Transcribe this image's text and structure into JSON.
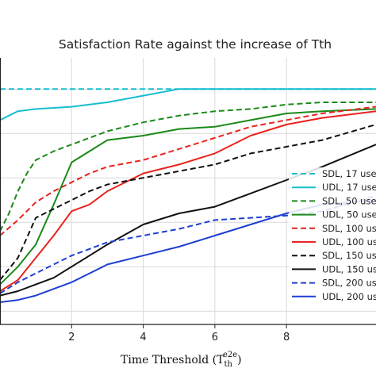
{
  "chart_data": {
    "type": "line",
    "title": "Satisfaction Rate against the increase of Tth",
    "xlabel": "Time Threshold (T",
    "xlabel_sup": "e2e",
    "xlabel_sub": "th",
    "xlabel_close": ")",
    "xlim": [
      0,
      10.5
    ],
    "ylim": [
      0.47,
      1.07
    ],
    "xticks": [
      2,
      4,
      6,
      8
    ],
    "grid": true,
    "legend_position": "right-lower",
    "series": [
      {
        "name": "SDL, 17 use",
        "color": "#17becf",
        "dash": "dashed",
        "x": [
          0,
          0.2,
          0.5,
          1,
          2,
          3,
          4,
          5,
          6,
          7,
          8,
          9,
          10.5
        ],
        "y": [
          1.0,
          1.0,
          1.0,
          1.0,
          1.0,
          1.0,
          1.0,
          1.0,
          1.0,
          1.0,
          1.0,
          1.0,
          1.0
        ]
      },
      {
        "name": "UDL, 17 use",
        "color": "#17becf",
        "dash": "solid",
        "x": [
          0,
          0.5,
          1,
          2,
          3,
          4,
          5,
          6,
          7,
          8,
          9,
          10.5
        ],
        "y": [
          0.93,
          0.95,
          0.955,
          0.96,
          0.97,
          0.985,
          1.0,
          1.0,
          1.0,
          1.0,
          1.0,
          1.0
        ]
      },
      {
        "name": "SDL, 50 use",
        "color": "#1a8a1a",
        "dash": "dashed",
        "x": [
          0,
          0.25,
          0.5,
          0.75,
          1,
          1.5,
          2,
          2.5,
          3,
          4,
          5,
          6,
          7,
          8,
          9,
          10.5
        ],
        "y": [
          0.68,
          0.72,
          0.77,
          0.81,
          0.84,
          0.86,
          0.875,
          0.89,
          0.905,
          0.925,
          0.94,
          0.95,
          0.955,
          0.965,
          0.97,
          0.97
        ]
      },
      {
        "name": "UDL, 50 use",
        "color": "#1a8a1a",
        "dash": "solid",
        "x": [
          0,
          0.5,
          1,
          1.5,
          2,
          2.5,
          3,
          4,
          5,
          6,
          7,
          8,
          9,
          10.5
        ],
        "y": [
          0.56,
          0.6,
          0.65,
          0.74,
          0.835,
          0.86,
          0.885,
          0.895,
          0.91,
          0.915,
          0.93,
          0.945,
          0.95,
          0.955
        ]
      },
      {
        "name": "SDL, 100 use",
        "color": "#e8231e",
        "dash": "dashed",
        "x": [
          0,
          0.5,
          1,
          1.5,
          2,
          2.5,
          3,
          4,
          5,
          6,
          7,
          8,
          9,
          10.5
        ],
        "y": [
          0.67,
          0.705,
          0.745,
          0.77,
          0.79,
          0.81,
          0.825,
          0.84,
          0.865,
          0.89,
          0.915,
          0.93,
          0.945,
          0.96
        ]
      },
      {
        "name": "UDL, 100 use",
        "color": "#e8231e",
        "dash": "solid",
        "x": [
          0,
          0.5,
          1,
          1.5,
          2,
          2.5,
          3,
          4,
          5,
          6,
          7,
          8,
          9,
          10.5
        ],
        "y": [
          0.545,
          0.57,
          0.62,
          0.67,
          0.725,
          0.74,
          0.77,
          0.81,
          0.83,
          0.855,
          0.895,
          0.92,
          0.935,
          0.95
        ]
      },
      {
        "name": "SDL, 150 use",
        "color": "#111111",
        "dash": "dashed",
        "x": [
          0,
          0.5,
          1,
          1.5,
          2,
          2.5,
          3,
          4,
          5,
          6,
          7,
          8,
          9,
          10.5
        ],
        "y": [
          0.57,
          0.62,
          0.71,
          0.73,
          0.75,
          0.77,
          0.785,
          0.8,
          0.815,
          0.83,
          0.855,
          0.87,
          0.885,
          0.92
        ]
      },
      {
        "name": "UDL, 150 use",
        "color": "#111111",
        "dash": "solid",
        "x": [
          0,
          0.5,
          1,
          1.5,
          2,
          2.5,
          3,
          4,
          5,
          6,
          7,
          8,
          9,
          10.5
        ],
        "y": [
          0.535,
          0.545,
          0.56,
          0.575,
          0.6,
          0.625,
          0.65,
          0.695,
          0.72,
          0.735,
          0.765,
          0.795,
          0.825,
          0.875
        ]
      },
      {
        "name": "SDL, 200 use",
        "color": "#1f3fd0",
        "dash": "dashed",
        "x": [
          0,
          0.5,
          1,
          1.5,
          2,
          2.5,
          3,
          4,
          5,
          6,
          7,
          8,
          9,
          10.5
        ],
        "y": [
          0.54,
          0.565,
          0.585,
          0.605,
          0.625,
          0.64,
          0.655,
          0.67,
          0.685,
          0.705,
          0.71,
          0.715,
          0.725,
          0.76
        ]
      },
      {
        "name": "UDL, 200 use",
        "color": "#1f3fd0",
        "dash": "solid",
        "x": [
          0,
          0.5,
          1,
          1.5,
          2,
          2.5,
          3,
          4,
          5,
          6,
          7,
          8,
          9,
          10.5
        ],
        "y": [
          0.52,
          0.525,
          0.535,
          0.55,
          0.565,
          0.585,
          0.605,
          0.625,
          0.645,
          0.67,
          0.695,
          0.72,
          0.74,
          0.75
        ]
      }
    ]
  }
}
